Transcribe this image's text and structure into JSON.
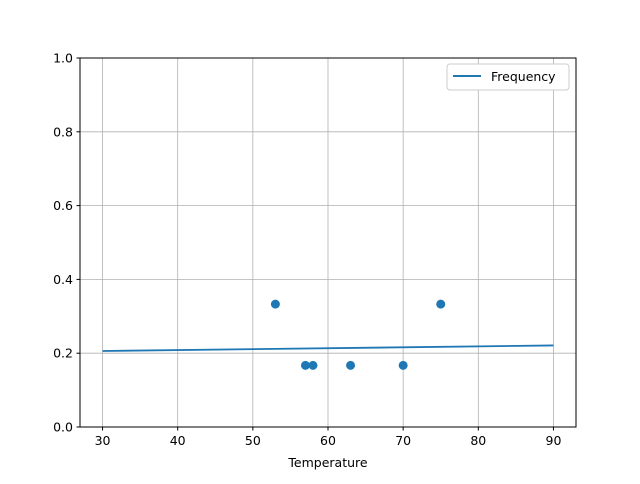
{
  "chart_data": {
    "type": "scatter",
    "title": "",
    "xlabel": "Temperature",
    "ylabel": "",
    "xlim": [
      27,
      93
    ],
    "ylim": [
      0,
      1.0
    ],
    "grid": true,
    "xticks": [
      "30",
      "40",
      "50",
      "60",
      "70",
      "80",
      "90"
    ],
    "yticks": [
      "0.0",
      "0.2",
      "0.4",
      "0.6",
      "0.8",
      "1.0"
    ],
    "legend": {
      "placement": "top-right",
      "entries": [
        "Frequency"
      ]
    },
    "color": "#1f77b4",
    "scatter_points": {
      "x": [
        53,
        57,
        58,
        63,
        70,
        75
      ],
      "y": [
        0.333,
        0.167,
        0.167,
        0.167,
        0.167,
        0.333
      ]
    },
    "line": {
      "name": "Frequency",
      "x": [
        30,
        90
      ],
      "y": [
        0.206,
        0.221
      ]
    }
  }
}
